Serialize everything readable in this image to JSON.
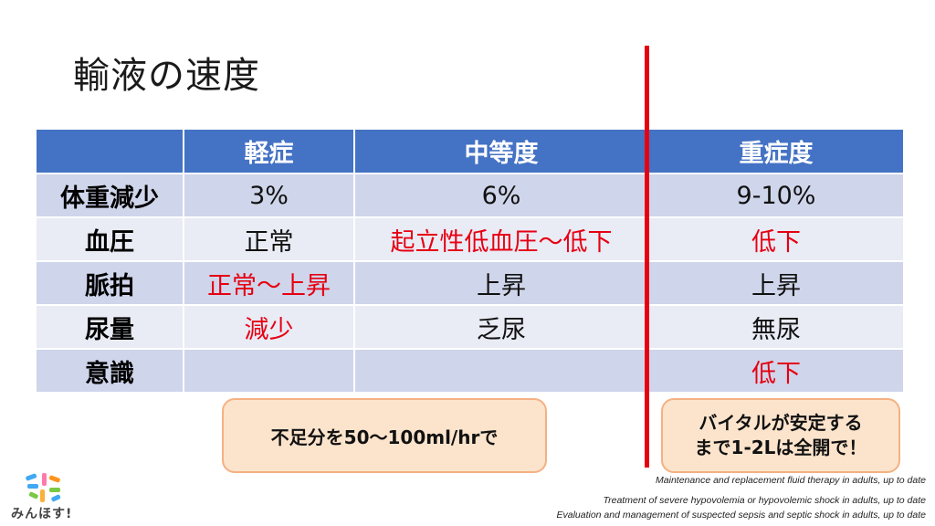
{
  "title": "輸液の速度",
  "table": {
    "headers": [
      "",
      "軽症",
      "中等度",
      "重症度"
    ],
    "rows": [
      {
        "label": "体重減少",
        "cells": [
          "3%",
          "6%",
          "9-10%"
        ]
      },
      {
        "label": "血圧",
        "cells": [
          "正常",
          "起立性低血圧～低下",
          "低下"
        ]
      },
      {
        "label": "脈拍",
        "cells": [
          "正常～上昇",
          "上昇",
          "上昇"
        ]
      },
      {
        "label": "尿量",
        "cells": [
          "減少",
          "乏尿",
          "無尿"
        ]
      },
      {
        "label": "意識",
        "cells": [
          "",
          "",
          "低下"
        ]
      }
    ]
  },
  "callouts": {
    "left": "不足分を50～100ml/hrで",
    "right_line1": "バイタルが安定する",
    "right_line2": "まで1-2Lは全開で！"
  },
  "references": [
    "Maintenance and replacement fluid therapy in adults, up to date",
    "Treatment of severe hypovolemia or hypovolemic shock in adults, up to date",
    "Evaluation and management of suspected sepsis and septic shock in adults, up to date"
  ],
  "logo_text": "みんほす!",
  "colors": {
    "header": "#4472c4",
    "accent_red": "#e60012",
    "callout_bg": "#fce4cc",
    "callout_border": "#f4b183"
  }
}
